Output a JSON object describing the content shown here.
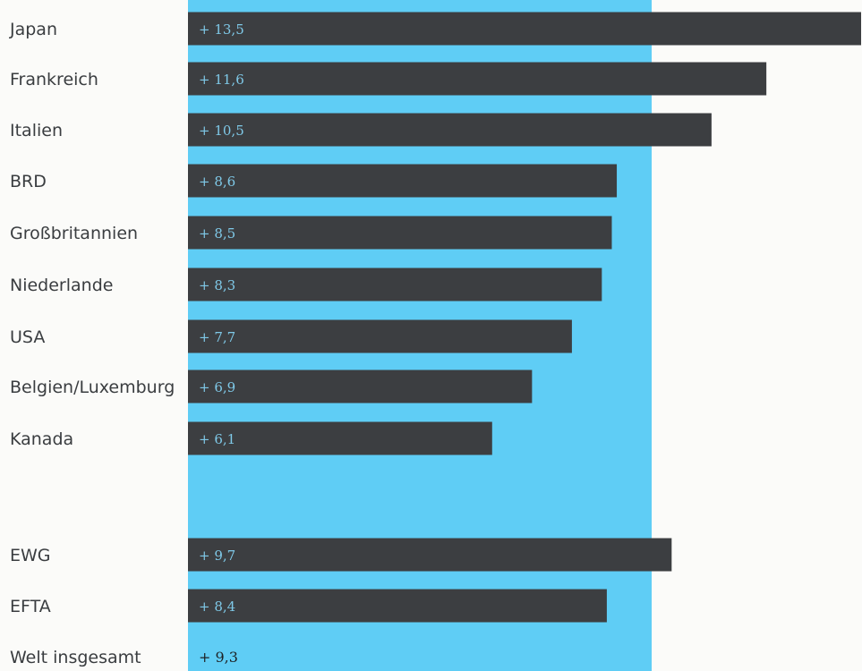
{
  "chart_data": {
    "type": "bar",
    "orientation": "horizontal",
    "categories": [
      "Japan",
      "Frankreich",
      "Italien",
      "BRD",
      "Großbritannien",
      "Niederlande",
      "USA",
      "Belgien/Luxemburg",
      "Kanada",
      "EWG",
      "EFTA",
      "Welt insgesamt"
    ],
    "values": [
      13.5,
      11.6,
      10.5,
      8.6,
      8.5,
      8.3,
      7.7,
      6.9,
      6.1,
      9.7,
      8.4,
      9.3
    ],
    "value_labels": [
      "+ 13,5",
      "+ 11,6",
      "+ 10,5",
      "+ 8,6",
      "+ 8,5",
      "+ 8,3",
      "+ 7,7",
      "+ 6,9",
      "+ 6,1",
      "+ 9,7",
      "+ 8,4",
      "+ 9,3"
    ],
    "bar_drawn": [
      true,
      true,
      true,
      true,
      true,
      true,
      true,
      true,
      true,
      true,
      true,
      false
    ],
    "reference_value": 9.3,
    "xlim": [
      0,
      13.5
    ],
    "colors": {
      "bar": "#3c3e41",
      "reference_band": "#5fcdf5",
      "background": "#fbfbf9"
    }
  }
}
